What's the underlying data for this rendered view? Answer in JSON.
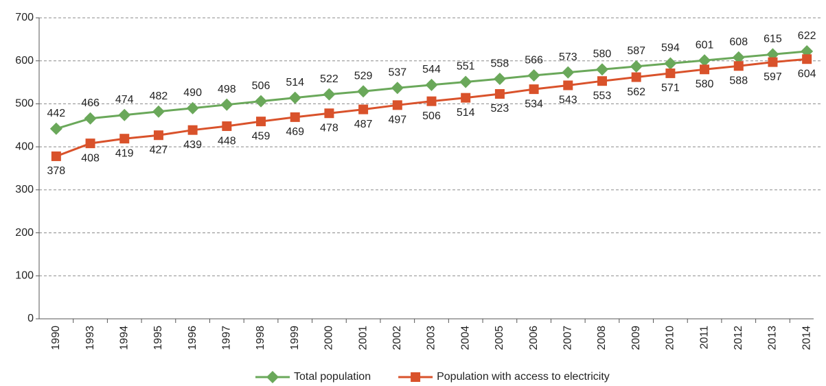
{
  "chart_data": {
    "type": "line",
    "categories": [
      "1990",
      "1993",
      "1994",
      "1995",
      "1996",
      "1997",
      "1998",
      "1999",
      "2000",
      "2001",
      "2002",
      "2003",
      "2004",
      "2005",
      "2006",
      "2007",
      "2008",
      "2009",
      "2010",
      "2011",
      "2012",
      "2013",
      "2014"
    ],
    "series": [
      {
        "name": "Total population",
        "color": "#6aa85a",
        "marker": "diamond",
        "label_position": "above",
        "values": [
          442,
          466,
          474,
          482,
          490,
          498,
          506,
          514,
          522,
          529,
          537,
          544,
          551,
          558,
          566,
          573,
          580,
          587,
          594,
          601,
          608,
          615,
          622
        ]
      },
      {
        "name": "Population with access to electricity",
        "color": "#d9522b",
        "marker": "square",
        "label_position": "below",
        "values": [
          378,
          408,
          419,
          427,
          439,
          448,
          459,
          469,
          478,
          487,
          497,
          506,
          514,
          523,
          534,
          543,
          553,
          562,
          571,
          580,
          588,
          597,
          604
        ]
      }
    ],
    "ylim": [
      0,
      700
    ],
    "yticks": [
      0,
      100,
      200,
      300,
      400,
      500,
      600,
      700
    ],
    "grid": true,
    "legend": "bottom"
  }
}
